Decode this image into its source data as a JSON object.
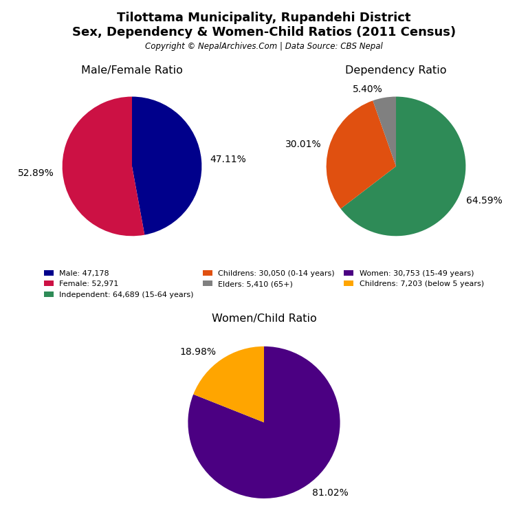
{
  "title": "Tilottama Municipality, Rupandehi District",
  "subtitle": "Sex, Dependency & Women-Child Ratios (2011 Census)",
  "annotations": [
    "Copyright © NepalArchives.Com | Data Source: CBS Nepal"
  ],
  "legend": "center",
  "chart_data": [
    {
      "type": "pie",
      "title": "Male/Female Ratio",
      "categories": [
        "Male: 47,178",
        "Female: 52,971"
      ],
      "values": [
        47.11,
        52.89
      ],
      "value_labels": [
        "47.11%",
        "52.89%"
      ],
      "colors": [
        "#00008B",
        "#CC1144"
      ],
      "data_labels": true
    },
    {
      "type": "pie",
      "title": "Dependency Ratio",
      "categories": [
        "Independent: 64,689 (15-64 years)",
        "Childrens: 30,050 (0-14 years)",
        "Elders: 5,410 (65+)"
      ],
      "values": [
        64.59,
        30.01,
        5.4
      ],
      "value_labels": [
        "64.59%",
        "30.01%",
        "5.40%"
      ],
      "colors": [
        "#2E8B57",
        "#E05010",
        "#808080"
      ],
      "data_labels": true
    },
    {
      "type": "pie",
      "title": "Women/Child Ratio",
      "categories": [
        "Women: 30,753 (15-49 years)",
        "Childrens: 7,203 (below 5 years)"
      ],
      "values": [
        81.02,
        18.98
      ],
      "value_labels": [
        "81.02%",
        "18.98%"
      ],
      "colors": [
        "#4B0082",
        "#FFA500"
      ],
      "data_labels": true
    }
  ]
}
